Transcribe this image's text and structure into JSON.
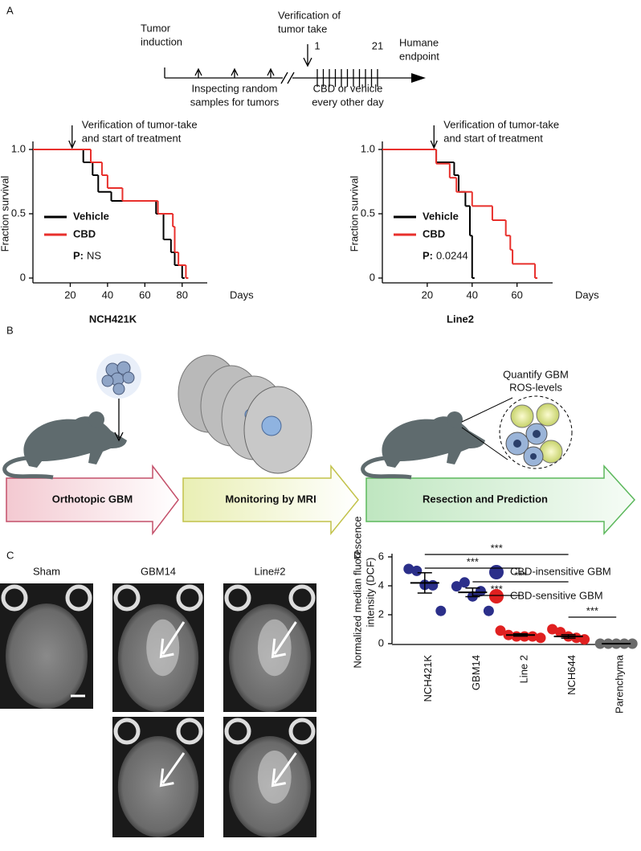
{
  "panel_labels": [
    "A",
    "B",
    "C",
    "D"
  ],
  "timeline": {
    "start_label": [
      "Tumor",
      "induction"
    ],
    "inspect_label": [
      "Inspecting random",
      "samples for tumors"
    ],
    "verify_label": [
      "Verification of",
      "tumor take"
    ],
    "first_dose": "1",
    "last_dose": "21",
    "treatment_label": [
      "CBD or vehicle",
      "every other day"
    ],
    "end_label": [
      "Humane",
      "endpoint"
    ]
  },
  "chart_data": [
    {
      "type": "step",
      "title": "NCH421K",
      "xlabel": "Days",
      "ylabel": "Fraction survival",
      "annotation": [
        "Verification of tumor-take",
        "and start of treatment"
      ],
      "annotation_x": 21,
      "xlim": [
        0,
        90
      ],
      "xticks": [
        20,
        40,
        60,
        80
      ],
      "ylim": [
        0,
        1
      ],
      "yticks": [
        {
          "value": 1,
          "label": "1.0"
        },
        {
          "value": 0.5,
          "label": "0.5"
        },
        0
      ],
      "series": [
        {
          "name": "Vehicle",
          "color": "#000000",
          "x": [
            0,
            27,
            32,
            35,
            42,
            55,
            66,
            70,
            74,
            76,
            80
          ],
          "values": [
            1,
            0.9,
            0.8,
            0.67,
            0.6,
            0.6,
            0.5,
            0.3,
            0.2,
            0.1,
            0
          ]
        },
        {
          "name": "CBD",
          "color": "#e8302c",
          "x": [
            0,
            31,
            37,
            40,
            48,
            67,
            75,
            76,
            78,
            82
          ],
          "values": [
            1,
            0.9,
            0.8,
            0.7,
            0.6,
            0.5,
            0.4,
            0.2,
            0.1,
            0
          ]
        }
      ],
      "stat_label": "P:",
      "stat_value": "NS"
    },
    {
      "type": "step",
      "title": "Line2",
      "xlabel": "Days",
      "ylabel": "Fraction survival",
      "annotation": [
        "Verification of tumor-take",
        "and start of treatment"
      ],
      "annotation_x": 23,
      "xlim": [
        0,
        73
      ],
      "xticks": [
        20,
        40,
        60
      ],
      "ylim": [
        0,
        1
      ],
      "yticks": [
        {
          "value": 1,
          "label": "1.0"
        },
        {
          "value": 0.5,
          "label": "0.5"
        },
        0
      ],
      "series": [
        {
          "name": "Vehicle",
          "color": "#000000",
          "x": [
            0,
            24,
            32,
            34,
            37,
            39,
            40
          ],
          "values": [
            1,
            0.9,
            0.8,
            0.67,
            0.56,
            0.33,
            0
          ]
        },
        {
          "name": "CBD",
          "color": "#e8302c",
          "x": [
            0,
            24,
            30,
            33,
            40,
            49,
            55,
            57,
            58,
            68
          ],
          "values": [
            1,
            0.89,
            0.78,
            0.67,
            0.56,
            0.45,
            0.33,
            0.22,
            0.11,
            0
          ]
        }
      ],
      "stat_label": "P:",
      "stat_value": "0.0244"
    },
    {
      "type": "dot",
      "ylabel": [
        "Normalized median fluorescence",
        "intensity (DCF)"
      ],
      "categories": [
        "NCH421K",
        "GBM14",
        "Line 2",
        "NCH644",
        "Parenchyma"
      ],
      "ylim": [
        0,
        6
      ],
      "yticks": [
        0,
        2,
        4,
        6
      ],
      "points": [
        [
          5.5,
          4.7,
          4.4,
          3.7,
          2.6
        ],
        [
          4.3,
          3.9,
          3.6,
          3.3,
          2.6
        ],
        [
          0.9,
          0.6,
          0.5,
          0.5,
          0.5,
          0.4
        ],
        [
          1.0,
          0.8,
          0.5,
          0.4,
          0.3
        ],
        [
          0,
          0,
          0,
          0,
          0
        ]
      ],
      "means": [
        4.2,
        3.55,
        0.6,
        0.5,
        0
      ],
      "sems": [
        0.7,
        0.3,
        0.08,
        0.12,
        0
      ],
      "colors": [
        "#2b2f8a",
        "#2b2f8a",
        "#e02020",
        "#e02020",
        "#6b6b6b"
      ],
      "legend": [
        {
          "label": "CBD-insensitive GBM",
          "color": "#2b2f8a"
        },
        {
          "label": "CBD-sensitive GBM",
          "color": "#e02020"
        }
      ],
      "comparisons": [
        {
          "from": 0,
          "to": 3,
          "label": "***"
        },
        {
          "from": 0,
          "to": 2,
          "label": "***"
        },
        {
          "from": 1,
          "to": 3,
          "label": "***"
        },
        {
          "from": 1,
          "to": 2,
          "label": "***"
        },
        {
          "from": 3,
          "to": 4,
          "label": "***"
        }
      ]
    }
  ],
  "workflow": {
    "steps": [
      "Orthotopic GBM",
      "Monitoring by MRI",
      "Resection and Prediction"
    ],
    "callout": [
      "Quantify GBM",
      "ROS-levels"
    ]
  },
  "mri": {
    "columns": [
      "Sham",
      "GBM14",
      "Line#2"
    ]
  }
}
